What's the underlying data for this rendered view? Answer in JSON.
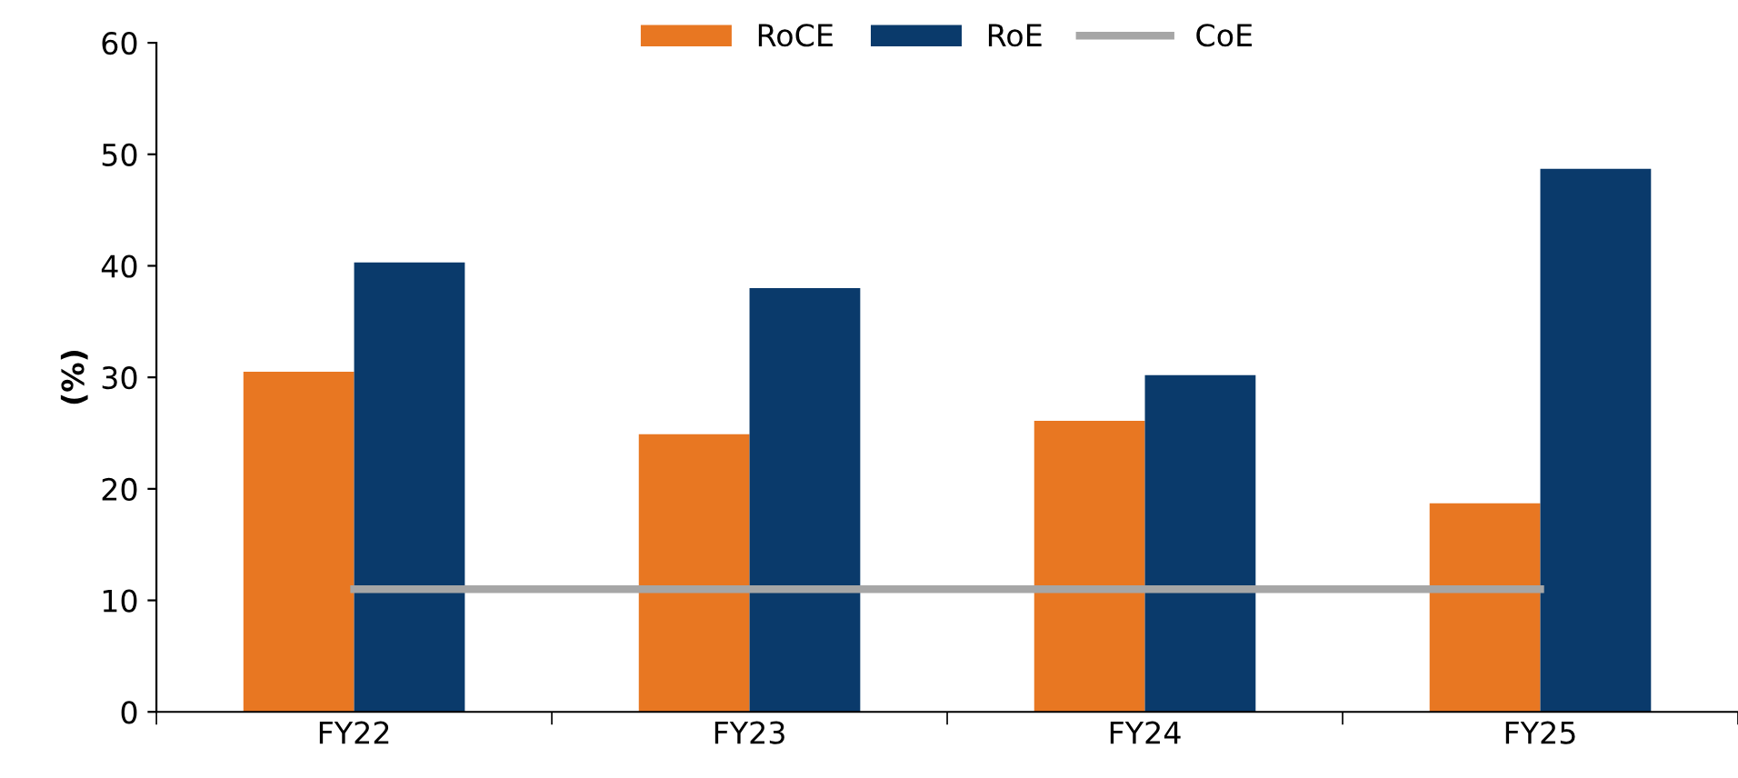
{
  "chart_data": {
    "type": "bar",
    "ylabel": "(%)",
    "categories": [
      "FY22",
      "FY23",
      "FY24",
      "FY25"
    ],
    "series": [
      {
        "name": "RoCE",
        "color": "#e87722",
        "values": [
          30.5,
          24.9,
          26.1,
          18.7
        ]
      },
      {
        "name": "RoE",
        "color": "#0a3a6b",
        "values": [
          40.3,
          38.0,
          30.2,
          48.7
        ]
      },
      {
        "name": "CoE",
        "type": "line",
        "color": "#a6a6a6",
        "values": [
          11.0,
          11.0,
          11.0,
          11.0
        ]
      }
    ],
    "ylim": [
      0,
      60
    ],
    "yticks": [
      0,
      10,
      20,
      30,
      40,
      50,
      60
    ],
    "grid": false,
    "legend": "top",
    "marker": "none",
    "line_style": "solid"
  }
}
